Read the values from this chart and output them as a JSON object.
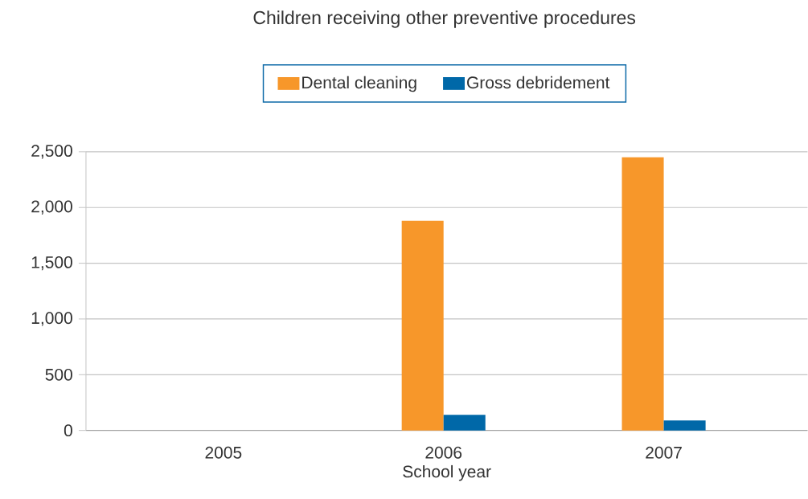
{
  "chart_data": {
    "type": "bar",
    "title": "Children receiving other preventive procedures",
    "xlabel": "School year",
    "categories": [
      "2005",
      "2006",
      "2007"
    ],
    "series": [
      {
        "name": "Dental cleaning",
        "color": "#f7972a",
        "values": [
          null,
          1880,
          2450
        ]
      },
      {
        "name": "Gross debridement",
        "color": "#0068a8",
        "values": [
          null,
          140,
          90
        ]
      }
    ],
    "ylim": [
      0,
      2500
    ],
    "yticks": [
      0,
      500,
      {
        "value": 1000,
        "label": "1,000"
      },
      {
        "value": 1500,
        "label": "1,500"
      },
      {
        "value": 2000,
        "label": "2,000"
      },
      {
        "value": 2500,
        "label": "2,500"
      }
    ],
    "grid": "y",
    "legend": "top"
  }
}
